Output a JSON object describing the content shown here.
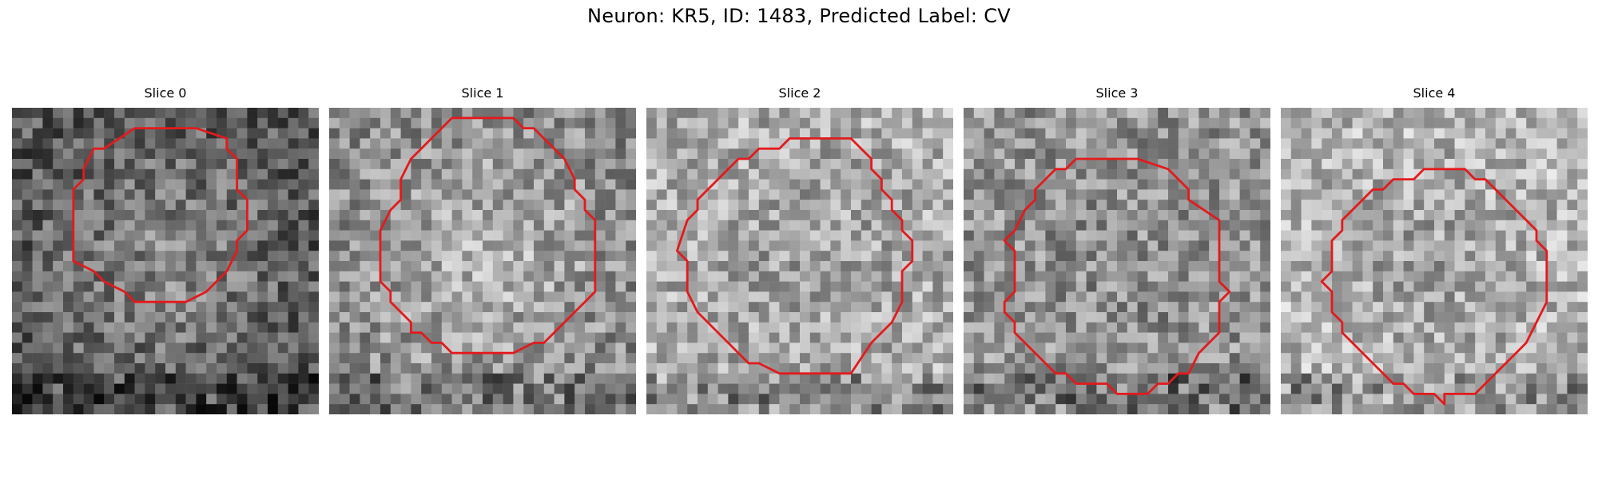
{
  "figure": {
    "title": "Neuron: KR5, ID: 1483, Predicted Label: CV",
    "contour_color": "#e31a1c",
    "panels": [
      {
        "title": "Slice 0",
        "seed": 11,
        "center_value": 0.55,
        "edge_value": 0.35
      },
      {
        "title": "Slice 1",
        "seed": 23,
        "center_value": 0.72,
        "edge_value": 0.55
      },
      {
        "title": "Slice 2",
        "seed": 37,
        "center_value": 0.62,
        "edge_value": 0.68
      },
      {
        "title": "Slice 3",
        "seed": 41,
        "center_value": 0.55,
        "edge_value": 0.58
      },
      {
        "title": "Slice 4",
        "seed": 53,
        "center_value": 0.62,
        "edge_value": 0.72
      }
    ]
  }
}
